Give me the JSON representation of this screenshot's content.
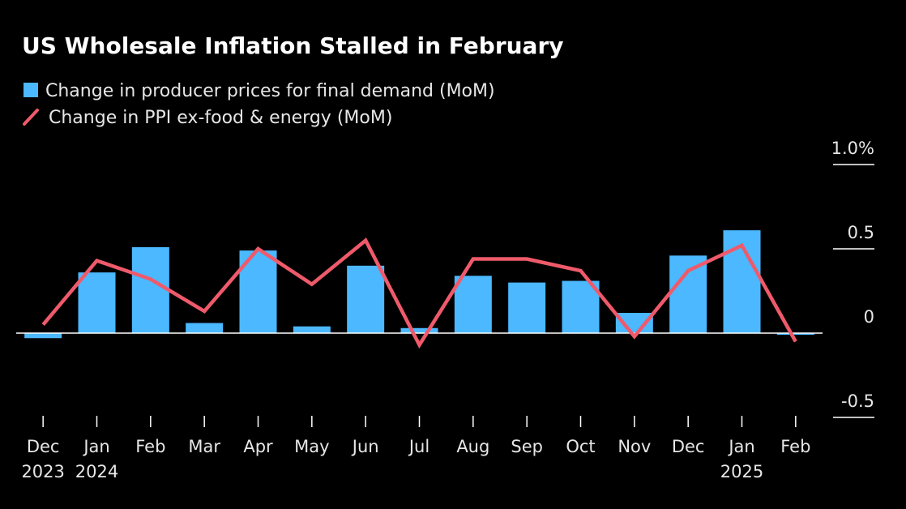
{
  "chart_data": {
    "type": "bar",
    "title": "US Wholesale Inflation Stalled in February",
    "xlabel": "",
    "ylabel": "",
    "ylim": [
      -0.5,
      1.0
    ],
    "y_ticks": [
      1.0,
      0.5,
      0,
      -0.5
    ],
    "y_tick_labels": [
      "1.0%",
      "0.5",
      "0",
      "-0.5"
    ],
    "grid": false,
    "legend_position": "top-left",
    "categories": [
      "Dec 2023",
      "Jan 2024",
      "Feb",
      "Mar",
      "Apr",
      "May",
      "Jun",
      "Jul",
      "Aug",
      "Sep",
      "Oct",
      "Nov",
      "Dec",
      "Jan 2025",
      "Feb"
    ],
    "x_labels": [
      {
        "month": "Dec",
        "year": "2023"
      },
      {
        "month": "Jan",
        "year": "2024"
      },
      {
        "month": "Feb",
        "year": ""
      },
      {
        "month": "Mar",
        "year": ""
      },
      {
        "month": "Apr",
        "year": ""
      },
      {
        "month": "May",
        "year": ""
      },
      {
        "month": "Jun",
        "year": ""
      },
      {
        "month": "Jul",
        "year": ""
      },
      {
        "month": "Aug",
        "year": ""
      },
      {
        "month": "Sep",
        "year": ""
      },
      {
        "month": "Oct",
        "year": ""
      },
      {
        "month": "Nov",
        "year": ""
      },
      {
        "month": "Dec",
        "year": ""
      },
      {
        "month": "Jan",
        "year": "2025"
      },
      {
        "month": "Feb",
        "year": ""
      }
    ],
    "series": [
      {
        "name": "Change in producer prices for final demand (MoM)",
        "type": "bar",
        "color": "#4bb8ff",
        "values": [
          -0.03,
          0.36,
          0.51,
          0.06,
          0.49,
          0.04,
          0.4,
          0.03,
          0.34,
          0.3,
          0.31,
          0.12,
          0.46,
          0.61,
          -0.01
        ]
      },
      {
        "name": "Change in PPI ex-food & energy (MoM)",
        "type": "line",
        "color": "#ef5a6b",
        "values": [
          0.05,
          0.43,
          0.32,
          0.13,
          0.5,
          0.29,
          0.55,
          -0.07,
          0.44,
          0.44,
          0.37,
          -0.02,
          0.37,
          0.52,
          -0.05
        ]
      }
    ]
  }
}
